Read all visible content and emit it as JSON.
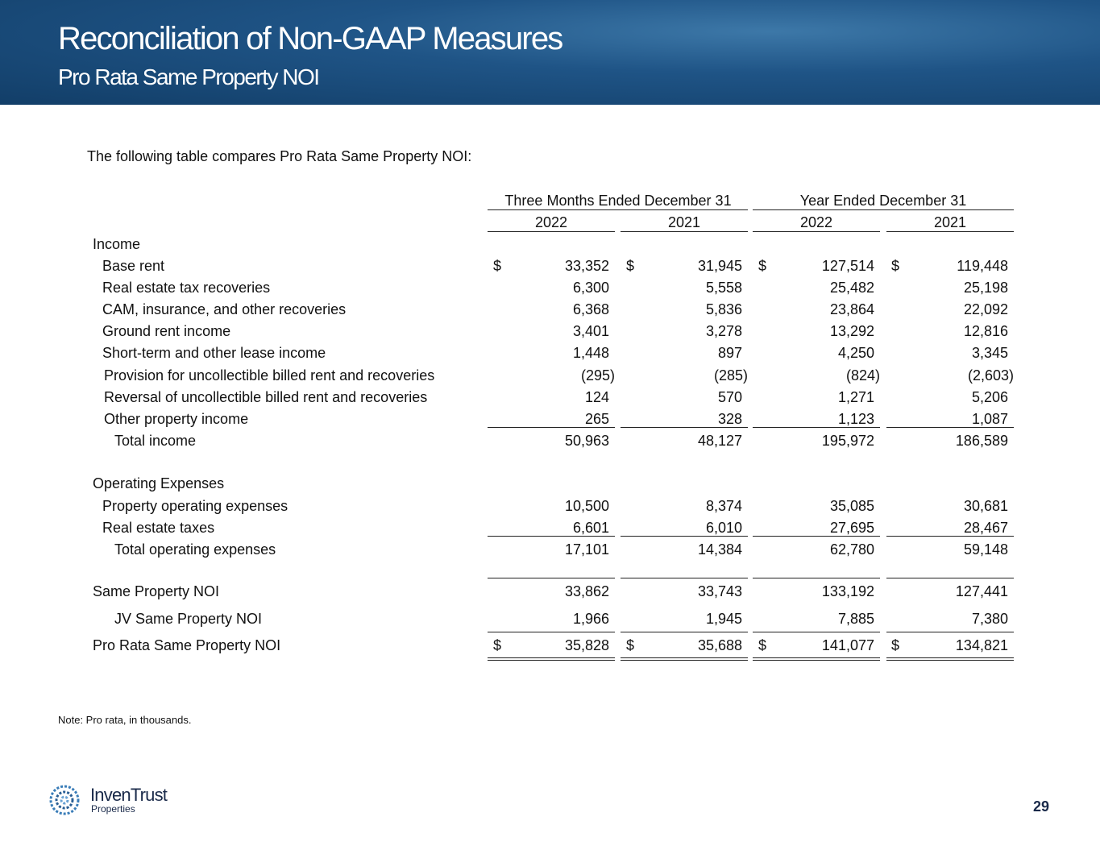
{
  "header": {
    "title": "Reconciliation of Non-GAAP Measures",
    "subtitle": "Pro Rata Same Property NOI"
  },
  "intro": "The following table compares Pro Rata Same Property NOI:",
  "table": {
    "groups": [
      "Three Months Ended December 31",
      "Year Ended December 31"
    ],
    "years": [
      "2022",
      "2021",
      "2022",
      "2021"
    ],
    "rows": [
      {
        "label": "Income"
      },
      {
        "label": "Base rent",
        "currency": "$",
        "values": [
          "33,352",
          "31,945",
          "127,514",
          "119,448"
        ]
      },
      {
        "label": "Real estate tax recoveries",
        "values": [
          "6,300",
          "5,558",
          "25,482",
          "25,198"
        ]
      },
      {
        "label": "CAM, insurance, and other recoveries",
        "values": [
          "6,368",
          "5,836",
          "23,864",
          "22,092"
        ]
      },
      {
        "label": "Ground rent income",
        "values": [
          "3,401",
          "3,278",
          "13,292",
          "12,816"
        ]
      },
      {
        "label": "Short-term and other lease income",
        "values": [
          "1,448",
          "897",
          "4,250",
          "3,345"
        ]
      },
      {
        "label": "Provision for uncollectible billed rent and recoveries",
        "values": [
          "(295)",
          "(285)",
          "(824)",
          "(2,603)"
        ]
      },
      {
        "label": "Reversal of uncollectible billed rent and recoveries",
        "values": [
          "124",
          "570",
          "1,271",
          "5,206"
        ]
      },
      {
        "label": "Other property income",
        "values": [
          "265",
          "328",
          "1,123",
          "1,087"
        ]
      },
      {
        "label": "Total income",
        "values": [
          "50,963",
          "48,127",
          "195,972",
          "186,589"
        ]
      },
      {
        "label": "Operating Expenses"
      },
      {
        "label": "Property operating expenses",
        "values": [
          "10,500",
          "8,374",
          "35,085",
          "30,681"
        ]
      },
      {
        "label": "Real estate taxes",
        "values": [
          "6,601",
          "6,010",
          "27,695",
          "28,467"
        ]
      },
      {
        "label": "Total operating expenses",
        "values": [
          "17,101",
          "14,384",
          "62,780",
          "59,148"
        ]
      },
      {
        "label": "Same Property NOI",
        "values": [
          "33,862",
          "33,743",
          "133,192",
          "127,441"
        ]
      },
      {
        "label": "JV Same Property NOI",
        "values": [
          "1,966",
          "1,945",
          "7,885",
          "7,380"
        ]
      },
      {
        "label": "Pro Rata Same Property NOI",
        "currency": "$",
        "values": [
          "35,828",
          "35,688",
          "141,077",
          "134,821"
        ]
      }
    ]
  },
  "note": "Note: Pro rata, in thousands.",
  "logo": {
    "name": "InvenTrust",
    "tagline": "Properties"
  },
  "page_number": "29"
}
